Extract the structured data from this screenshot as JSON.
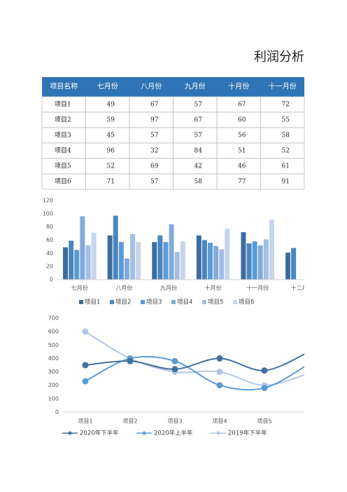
{
  "title": "利润分析",
  "table": {
    "header": [
      "项目名称",
      "七月份",
      "八月份",
      "九月份",
      "十月份",
      "十一月份"
    ],
    "rows": [
      [
        "项目1",
        49,
        67,
        57,
        67,
        72
      ],
      [
        "项目2",
        59,
        97,
        67,
        60,
        55
      ],
      [
        "项目3",
        45,
        57,
        57,
        56,
        58
      ],
      [
        "项目4",
        96,
        32,
        84,
        51,
        52
      ],
      [
        "项目5",
        52,
        69,
        42,
        46,
        61
      ],
      [
        "项目6",
        71,
        57,
        58,
        77,
        91
      ]
    ]
  },
  "chart_data": [
    {
      "type": "bar",
      "categories": [
        "七月份",
        "八月份",
        "九月份",
        "十月份",
        "十一月份",
        "十二月份"
      ],
      "series": [
        {
          "name": "项目1",
          "color": "#3d6d9f",
          "values": [
            49,
            67,
            57,
            67,
            72,
            41
          ]
        },
        {
          "name": "项目2",
          "color": "#4a87c0",
          "values": [
            59,
            97,
            67,
            60,
            55,
            48
          ]
        },
        {
          "name": "项目3",
          "color": "#5b9bd5",
          "values": [
            45,
            57,
            57,
            56,
            58,
            null
          ]
        },
        {
          "name": "项目4",
          "color": "#80abda",
          "values": [
            96,
            32,
            84,
            51,
            52,
            null
          ]
        },
        {
          "name": "项目5",
          "color": "#a4bfe2",
          "values": [
            52,
            69,
            42,
            46,
            61,
            null
          ]
        },
        {
          "name": "项目6",
          "color": "#c6d4ec",
          "values": [
            71,
            57,
            58,
            77,
            91,
            null
          ]
        }
      ],
      "ylim": [
        0,
        120
      ],
      "yticks": [
        0,
        20,
        40,
        60,
        80,
        100,
        120
      ],
      "legend": "bottom"
    },
    {
      "type": "line",
      "smooth": true,
      "categories": [
        "项目1",
        "项目2",
        "项目3",
        "项目4",
        "项目5",
        null
      ],
      "series": [
        {
          "name": "2020年下半年",
          "color": "#41719c",
          "values": [
            350,
            380,
            320,
            400,
            310,
            450
          ]
        },
        {
          "name": "2020年上半年",
          "color": "#5b9bd5",
          "values": [
            230,
            400,
            380,
            200,
            180,
            360
          ]
        },
        {
          "name": "2019年下半年",
          "color": "#b4c7e7",
          "values": [
            600,
            400,
            300,
            300,
            200,
            290
          ]
        }
      ],
      "ylim": [
        0,
        700
      ],
      "yticks": [
        0,
        100,
        200,
        300,
        400,
        500,
        600,
        700
      ],
      "legend": "bottom"
    }
  ]
}
